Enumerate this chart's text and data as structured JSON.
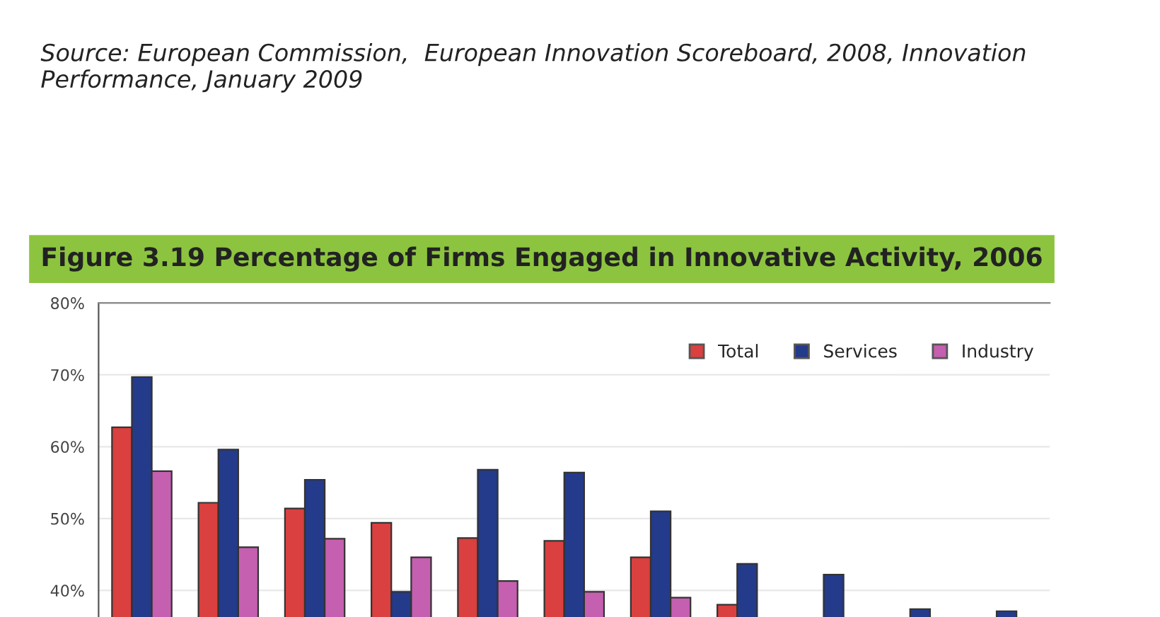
{
  "chart_data": {
    "type": "bar",
    "title": "Figure 3.19 Percentage of Firms Engaged in Innovative Activity, 2006",
    "annotations": [
      "Source: European Commission,  European Innovation Scoreboard, 2008, Innovation Performance, January 2009"
    ],
    "categories": [
      null,
      null,
      null,
      null,
      null,
      null,
      null,
      null,
      null,
      null,
      null
    ],
    "series": [
      {
        "name": "Total",
        "color": "#d9403f",
        "values": [
          62.7,
          52.2,
          51.4,
          49.4,
          47.3,
          46.9,
          44.6,
          38.0,
          null,
          null,
          null
        ]
      },
      {
        "name": "Services",
        "color": "#243a8a",
        "values": [
          69.7,
          59.6,
          55.4,
          39.8,
          56.8,
          56.4,
          51.0,
          43.7,
          42.2,
          37.4,
          37.1
        ]
      },
      {
        "name": "Industry",
        "color": "#c55fb0",
        "values": [
          56.6,
          46.0,
          47.2,
          44.6,
          41.3,
          39.8,
          39.0,
          null,
          null,
          null,
          null
        ]
      }
    ],
    "ylim": [
      36.3,
      80
    ],
    "yticks": [
      {
        "value": 40,
        "label": "40%"
      },
      {
        "value": 50,
        "label": "50%"
      },
      {
        "value": 60,
        "label": "60%"
      },
      {
        "value": 70,
        "label": "70%"
      },
      {
        "value": 80,
        "label": "80%"
      }
    ],
    "grid": "y",
    "legend": "top right"
  }
}
